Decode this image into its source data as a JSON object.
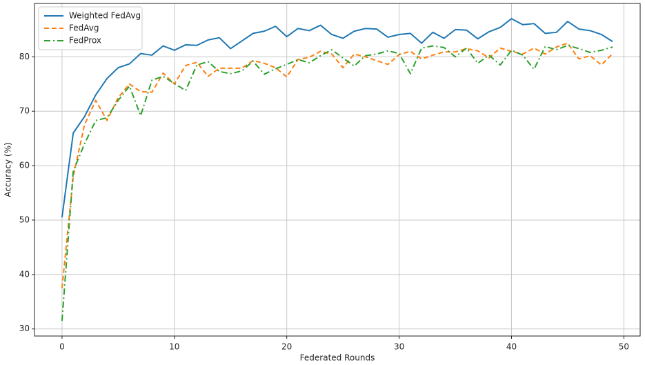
{
  "chart_data": {
    "type": "line",
    "x_label": "Federated Rounds",
    "y_label": "Accuracy (%)",
    "x": [
      0,
      1,
      2,
      3,
      4,
      5,
      6,
      7,
      8,
      9,
      10,
      11,
      12,
      13,
      14,
      15,
      16,
      17,
      18,
      19,
      20,
      21,
      22,
      23,
      24,
      25,
      26,
      27,
      28,
      29,
      30,
      31,
      32,
      33,
      34,
      35,
      36,
      37,
      38,
      39,
      40,
      41,
      42,
      43,
      44,
      45,
      46,
      47,
      48,
      49
    ],
    "series": [
      {
        "name": "Weighted FedAvg",
        "color": "#1f77b4",
        "linestyle": "solid",
        "values": [
          50.5,
          66,
          69,
          73,
          76,
          78,
          78.7,
          80.6,
          80.3,
          82,
          81.2,
          82.2,
          82.1,
          83.1,
          83.5,
          81.5,
          82.9,
          84.3,
          84.7,
          85.6,
          83.7,
          85.2,
          84.8,
          85.8,
          84.1,
          83.4,
          84.7,
          85.2,
          85.1,
          83.6,
          84.1,
          84.3,
          82.5,
          84.5,
          83.4,
          85,
          84.9,
          83.3,
          84.6,
          85.4,
          87,
          85.9,
          86.1,
          84.3,
          84.5,
          86.5,
          85.1,
          84.8,
          84.1,
          82.8
        ]
      },
      {
        "name": "FedAvg",
        "color": "#ff7f0e",
        "linestyle": "dashed",
        "values": [
          37.5,
          58,
          67.5,
          72,
          68.3,
          72.5,
          75,
          73.6,
          73.5,
          77,
          75,
          78.4,
          79,
          76.4,
          77.9,
          77.9,
          77.9,
          79.3,
          78.8,
          78,
          76.3,
          79.5,
          79.9,
          81,
          80.5,
          78,
          80.5,
          80,
          79.3,
          78.6,
          80.4,
          81,
          79.6,
          80.3,
          80.9,
          80.9,
          81.5,
          81.1,
          79.8,
          81.6,
          81,
          80.5,
          81.6,
          80.5,
          81.8,
          82.5,
          79.6,
          80.2,
          78.5,
          80.6
        ]
      },
      {
        "name": "FedProx",
        "color": "#2ca02c",
        "linestyle": "dashdot",
        "values": [
          31.5,
          59,
          64,
          68.3,
          68.8,
          72,
          74.6,
          69.2,
          75.7,
          76.4,
          75.1,
          73.8,
          78.5,
          79.1,
          77.3,
          76.9,
          77.4,
          79.2,
          76.8,
          77.8,
          78.6,
          79.5,
          78.9,
          80.2,
          81.3,
          79.8,
          78.3,
          80.2,
          80.5,
          81.1,
          80.6,
          76.9,
          81.6,
          82,
          81.7,
          80,
          81.6,
          78.8,
          80.3,
          78.5,
          81.2,
          80.3,
          77.7,
          81.9,
          81.3,
          82.1,
          81.5,
          80.8,
          81.2,
          81.8
        ]
      }
    ],
    "xlim": [
      -2.45,
      51.45
    ],
    "xticks": [
      0,
      10,
      20,
      30,
      40,
      50
    ],
    "ylim": [
      28.7,
      89.8
    ],
    "yticks": [
      30,
      40,
      50,
      60,
      70,
      80
    ],
    "grid": true,
    "legend": "upper left"
  }
}
